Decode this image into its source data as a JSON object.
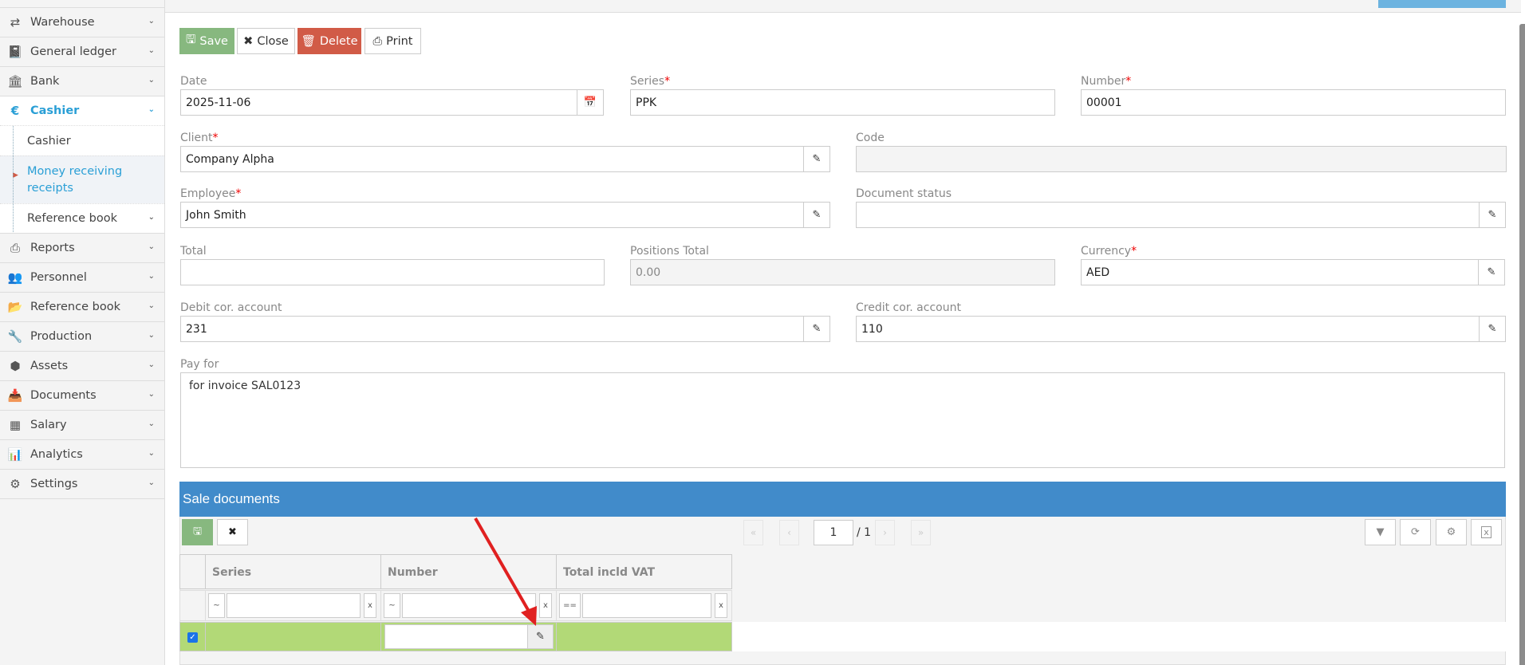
{
  "sidebar": {
    "items": [
      {
        "label": "Warehouse",
        "icon": "exchange-icon"
      },
      {
        "label": "General ledger",
        "icon": "book-icon"
      },
      {
        "label": "Bank",
        "icon": "bank-icon"
      },
      {
        "label": "Cashier",
        "icon": "euro-icon",
        "active": true
      },
      {
        "label": "Reports",
        "icon": "print-icon"
      },
      {
        "label": "Personnel",
        "icon": "users-icon"
      },
      {
        "label": "Reference book",
        "icon": "folder-open-icon"
      },
      {
        "label": "Production",
        "icon": "wrench-icon"
      },
      {
        "label": "Assets",
        "icon": "cube-icon"
      },
      {
        "label": "Documents",
        "icon": "inbox-icon"
      },
      {
        "label": "Salary",
        "icon": "table-icon"
      },
      {
        "label": "Analytics",
        "icon": "bar-chart-icon"
      },
      {
        "label": "Settings",
        "icon": "cogs-icon"
      }
    ],
    "cashier_sub": [
      {
        "label": "Cashier"
      },
      {
        "label": "Money receiving receipts",
        "selected": true
      },
      {
        "label": "Reference book"
      }
    ]
  },
  "toolbar": {
    "save": "Save",
    "close": "Close",
    "delete": "Delete",
    "print": "Print"
  },
  "form": {
    "date": {
      "label": "Date",
      "value": "2025-11-06"
    },
    "series": {
      "label": "Series",
      "value": "PPK"
    },
    "number": {
      "label": "Number",
      "value": "00001"
    },
    "client": {
      "label": "Client",
      "value": "Company Alpha"
    },
    "code": {
      "label": "Code",
      "value": ""
    },
    "employee": {
      "label": "Employee",
      "value": "John Smith"
    },
    "document_status": {
      "label": "Document status",
      "value": ""
    },
    "total": {
      "label": "Total",
      "value": ""
    },
    "positions_total": {
      "label": "Positions Total",
      "value": "0.00"
    },
    "currency": {
      "label": "Currency",
      "value": "AED"
    },
    "debit": {
      "label": "Debit cor. account",
      "value": "231"
    },
    "credit": {
      "label": "Credit cor. account",
      "value": "110"
    },
    "pay_for": {
      "label": "Pay for",
      "value": "for invoice SAL0123"
    },
    "required": "*"
  },
  "grid": {
    "title": "Sale documents",
    "page": "1",
    "pages": "/ 1",
    "columns": [
      "Series",
      "Number",
      "Total incld VAT"
    ],
    "filters": [
      "~",
      "~",
      "=="
    ],
    "clear": "x",
    "colors": {
      "header": "#418bca",
      "row_selected": "#b2d977"
    }
  }
}
